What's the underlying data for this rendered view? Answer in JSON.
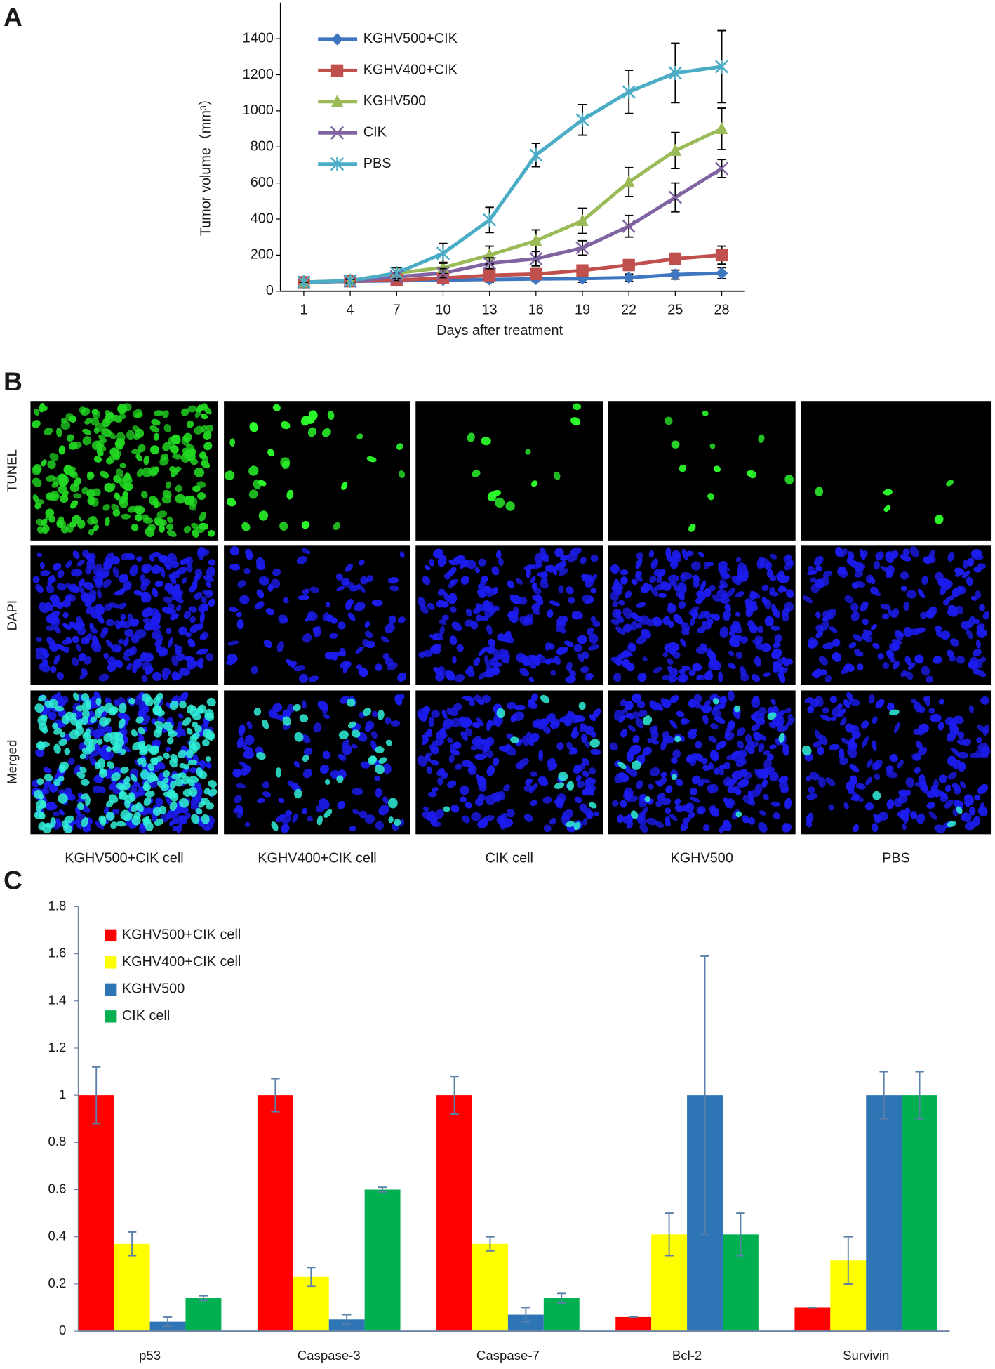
{
  "panel_labels": [
    "A",
    "B",
    "C"
  ],
  "chart_data": [
    {
      "type": "line",
      "xlabel": "Days after treatment",
      "ylabel": "Tumor volume（mm³）",
      "x": [
        1,
        4,
        7,
        10,
        13,
        16,
        19,
        22,
        25,
        28
      ],
      "xlim": [
        -0.5,
        29.5
      ],
      "xticks": [
        1,
        4,
        7,
        10,
        13,
        16,
        19,
        22,
        25,
        28
      ],
      "ylim": [
        0,
        1600
      ],
      "yticks": [
        0,
        200,
        400,
        600,
        800,
        1000,
        1200,
        1400
      ],
      "legend": "top-left",
      "error_bar_color": "#000000",
      "series": [
        {
          "name": "KGHV500+CIK",
          "color": "#3e76c0",
          "marker": "diamond",
          "values": [
            50,
            55,
            58,
            62,
            65,
            68,
            70,
            75,
            92,
            100
          ],
          "errors": [
            0,
            5,
            10,
            10,
            15,
            15,
            20,
            20,
            25,
            30
          ]
        },
        {
          "name": "KGHV400+CIK",
          "color": "#c0504d",
          "marker": "square",
          "values": [
            50,
            55,
            62,
            72,
            88,
            95,
            115,
            145,
            180,
            200
          ],
          "errors": [
            0,
            10,
            15,
            15,
            20,
            30,
            30,
            30,
            30,
            50
          ]
        },
        {
          "name": "KGHV500",
          "color": "#9bbb59",
          "marker": "triangle",
          "values": [
            50,
            58,
            100,
            130,
            200,
            280,
            390,
            605,
            780,
            900
          ],
          "errors": [
            0,
            10,
            30,
            30,
            50,
            60,
            70,
            80,
            100,
            115
          ]
        },
        {
          "name": "CIK",
          "color": "#8064a2",
          "marker": "x",
          "values": [
            50,
            55,
            80,
            100,
            155,
            180,
            240,
            360,
            520,
            680
          ],
          "errors": [
            0,
            10,
            20,
            25,
            30,
            40,
            40,
            60,
            80,
            50
          ]
        },
        {
          "name": "PBS",
          "color": "#4bacc6",
          "marker": "asterisk",
          "values": [
            50,
            58,
            100,
            210,
            395,
            755,
            950,
            1105,
            1210,
            1245
          ],
          "errors": [
            0,
            10,
            30,
            55,
            70,
            65,
            85,
            120,
            165,
            200
          ]
        }
      ]
    },
    {
      "type": "bar",
      "categories": [
        "p53",
        "Caspase-3",
        "Caspase-7",
        "Bcl-2",
        "Survivin"
      ],
      "ylim": [
        0,
        1.8
      ],
      "yticks": [
        0,
        0.2,
        0.4,
        0.6,
        0.8,
        1,
        1.2,
        1.4,
        1.6,
        1.8
      ],
      "legend": "top-left",
      "error_bar_color": "#5b7fa8",
      "series": [
        {
          "name": "KGHV500+CIK cell",
          "color": "#ff0000",
          "values": [
            1,
            1,
            1,
            0.06,
            0.1
          ],
          "errors": [
            0.12,
            0.07,
            0.08,
            0,
            0
          ]
        },
        {
          "name": "KGHV400+CIK cell",
          "color": "#ffff00",
          "values": [
            0.37,
            0.23,
            0.37,
            0.41,
            0.3
          ],
          "errors": [
            0.05,
            0.04,
            0.03,
            0.09,
            0.1
          ]
        },
        {
          "name": "KGHV500",
          "color": "#2e75b6",
          "values": [
            0.04,
            0.05,
            0.07,
            1,
            1
          ],
          "errors": [
            0.02,
            0.02,
            0.03,
            0.59,
            0.1
          ]
        },
        {
          "name": "CIK cell",
          "color": "#00b050",
          "values": [
            0.14,
            0.6,
            0.14,
            0.41,
            1
          ],
          "errors": [
            0.01,
            0.01,
            0.02,
            0.09,
            0.1
          ]
        }
      ]
    }
  ],
  "image_panel": {
    "row_labels": [
      "TUNEL",
      "DAPI",
      "Merged"
    ],
    "column_labels": [
      "KGHV500+CIK cell",
      "KGHV400+CIK cell",
      "CIK cell",
      "KGHV500",
      "PBS"
    ]
  }
}
